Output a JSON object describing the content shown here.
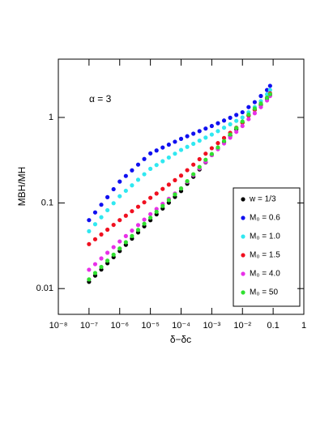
{
  "chart_data": {
    "type": "scatter",
    "x_label": "δ−δc",
    "y_label": "MBH/MH",
    "annotation": "α = 3",
    "log_x": true,
    "log_y": true,
    "legend": "lower right",
    "xlim": [
      1e-08,
      1
    ],
    "ylim": [
      0.005,
      4.8
    ],
    "xticks": [
      {
        "value": 1e-08,
        "label": "10⁻⁸"
      },
      {
        "value": 1e-07,
        "label": "10⁻⁷"
      },
      {
        "value": 1e-06,
        "label": "10⁻⁶"
      },
      {
        "value": 1e-05,
        "label": "10⁻⁵"
      },
      {
        "value": 0.0001,
        "label": "10⁻⁴"
      },
      {
        "value": 0.001,
        "label": "10⁻³"
      },
      {
        "value": 0.01,
        "label": "10⁻²"
      },
      0.1,
      1
    ],
    "yticks": [
      0.01,
      0.1,
      1
    ],
    "x": [
      1e-07,
      1.585e-07,
      2.512e-07,
      3.981e-07,
      6.31e-07,
      1e-06,
      1.585e-06,
      2.512e-06,
      3.981e-06,
      6.31e-06,
      1e-05,
      1.585e-05,
      2.512e-05,
      3.981e-05,
      6.31e-05,
      0.0001,
      0.0001585,
      0.0002512,
      0.0003981,
      0.000631,
      0.001,
      0.001585,
      0.002512,
      0.003981,
      0.00631,
      0.01,
      0.01585,
      0.02512,
      0.03981,
      0.0631,
      0.07943
    ],
    "series": [
      {
        "name": "w = 1/3",
        "color": "#000000",
        "values": [
          0.012,
          0.0142,
          0.0167,
          0.0198,
          0.0233,
          0.0275,
          0.0325,
          0.0384,
          0.0453,
          0.0535,
          0.063,
          0.0738,
          0.0863,
          0.101,
          0.118,
          0.138,
          0.168,
          0.203,
          0.247,
          0.299,
          0.363,
          0.433,
          0.515,
          0.614,
          0.731,
          0.871,
          1.05,
          1.23,
          1.41,
          1.66,
          1.82
        ]
      },
      {
        "name": "M₀ = 0.6",
        "color": "#1010f0",
        "values": [
          0.0631,
          0.0776,
          0.0955,
          0.117,
          0.145,
          0.178,
          0.207,
          0.241,
          0.281,
          0.327,
          0.38,
          0.411,
          0.445,
          0.481,
          0.52,
          0.562,
          0.603,
          0.646,
          0.692,
          0.741,
          0.794,
          0.855,
          0.92,
          0.991,
          1.07,
          1.15,
          1.32,
          1.51,
          1.78,
          2.09,
          2.34
        ]
      },
      {
        "name": "M₀ = 1.0",
        "color": "#30e8f0",
        "values": [
          0.0468,
          0.0565,
          0.0682,
          0.0824,
          0.0995,
          0.12,
          0.139,
          0.161,
          0.187,
          0.217,
          0.251,
          0.278,
          0.308,
          0.34,
          0.377,
          0.417,
          0.453,
          0.492,
          0.535,
          0.581,
          0.631,
          0.692,
          0.759,
          0.832,
          0.912,
          1.0,
          1.15,
          1.32,
          1.55,
          1.86,
          2.09
        ]
      },
      {
        "name": "M₀ = 1.5",
        "color": "#f01020",
        "values": [
          0.0331,
          0.0377,
          0.0429,
          0.0488,
          0.0555,
          0.0631,
          0.0711,
          0.0802,
          0.0904,
          0.102,
          0.115,
          0.129,
          0.146,
          0.164,
          0.185,
          0.209,
          0.242,
          0.281,
          0.325,
          0.377,
          0.437,
          0.501,
          0.575,
          0.661,
          0.759,
          0.871,
          1.05,
          1.23,
          1.45,
          1.7,
          1.91
        ]
      },
      {
        "name": "M₀ = 4.0",
        "color": "#e830e8",
        "values": [
          0.0166,
          0.0193,
          0.0225,
          0.0262,
          0.0305,
          0.0355,
          0.0411,
          0.0476,
          0.0552,
          0.064,
          0.0741,
          0.0851,
          0.0977,
          0.112,
          0.129,
          0.148,
          0.177,
          0.212,
          0.254,
          0.303,
          0.363,
          0.425,
          0.497,
          0.581,
          0.679,
          0.794,
          0.955,
          1.12,
          1.32,
          1.58,
          1.78
        ]
      },
      {
        "name": "M₀ = 50",
        "color": "#30e030",
        "values": [
          0.0128,
          0.0152,
          0.0179,
          0.0212,
          0.0249,
          0.0294,
          0.0348,
          0.0411,
          0.0485,
          0.0572,
          0.0674,
          0.079,
          0.0923,
          0.108,
          0.126,
          0.148,
          0.18,
          0.217,
          0.264,
          0.32,
          0.374,
          0.446,
          0.53,
          0.632,
          0.753,
          0.897,
          1.08,
          1.27,
          1.45,
          1.7,
          1.87
        ]
      }
    ]
  }
}
